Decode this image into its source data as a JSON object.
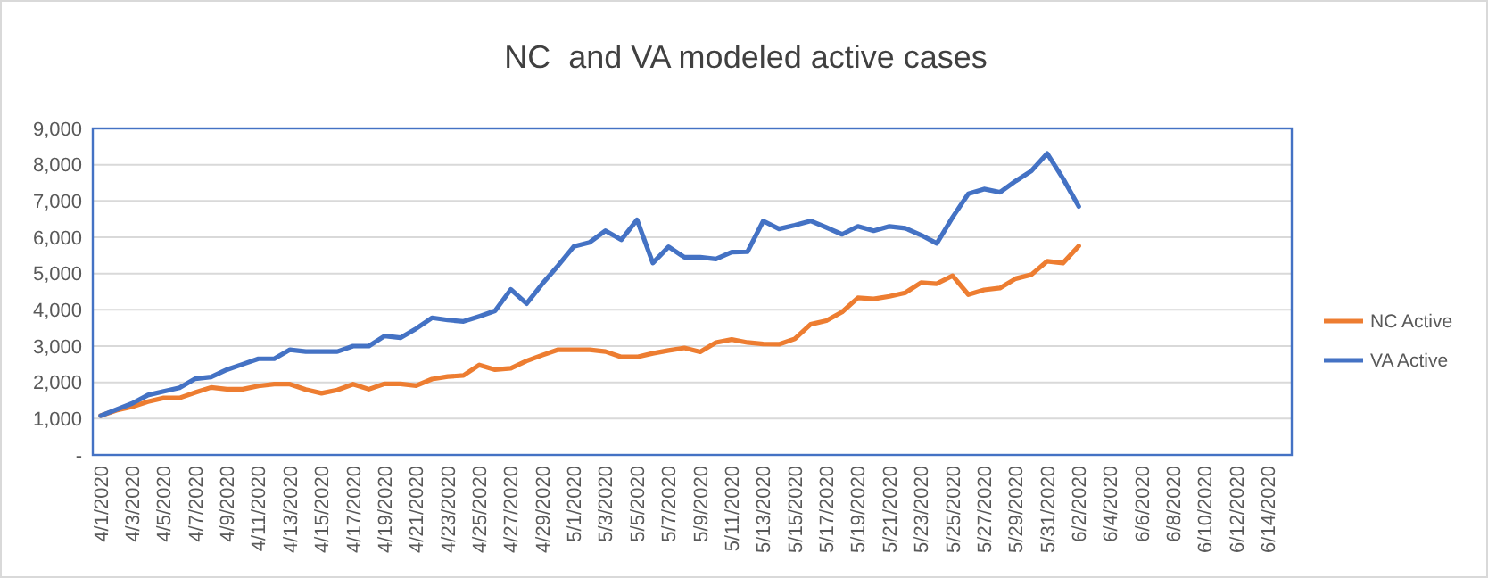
{
  "chart_data": {
    "type": "line",
    "title": "NC  and VA modeled active cases",
    "categories": [
      "4/1/2020",
      null,
      "4/3/2020",
      null,
      "4/5/2020",
      null,
      "4/7/2020",
      null,
      "4/9/2020",
      null,
      "4/11/2020",
      null,
      "4/13/2020",
      null,
      "4/15/2020",
      null,
      "4/17/2020",
      null,
      "4/19/2020",
      null,
      "4/21/2020",
      null,
      "4/23/2020",
      null,
      "4/25/2020",
      null,
      "4/27/2020",
      null,
      "4/29/2020",
      null,
      "5/1/2020",
      null,
      "5/3/2020",
      null,
      "5/5/2020",
      null,
      "5/7/2020",
      null,
      "5/9/2020",
      null,
      "5/11/2020",
      null,
      "5/13/2020",
      null,
      "5/15/2020",
      null,
      "5/17/2020",
      null,
      "5/19/2020",
      null,
      "5/21/2020",
      null,
      "5/23/2020",
      null,
      "5/25/2020",
      null,
      "5/27/2020",
      null,
      "5/29/2020",
      null,
      "5/31/2020",
      null,
      "6/2/2020",
      null,
      "6/4/2020",
      null,
      "6/6/2020",
      null,
      "6/8/2020",
      null,
      "6/10/2020",
      null,
      "6/12/2020",
      null,
      "6/14/2020",
      null
    ],
    "series": [
      {
        "name": "NC Active",
        "color": "#ed7d31",
        "values": [
          1080,
          1230,
          1330,
          1470,
          1570,
          1570,
          1720,
          1860,
          1810,
          1810,
          1900,
          1950,
          1950,
          1800,
          1700,
          1790,
          1950,
          1810,
          1960,
          1960,
          1910,
          2090,
          2160,
          2190,
          2480,
          2350,
          2390,
          2590,
          2750,
          2900,
          2900,
          2900,
          2850,
          2700,
          2700,
          2800,
          2880,
          2950,
          2840,
          3100,
          3180,
          3100,
          3060,
          3050,
          3200,
          3600,
          3700,
          3940,
          4330,
          4300,
          4370,
          4470,
          4750,
          4720,
          4940,
          4420,
          4550,
          4600,
          4860,
          4970,
          5340,
          5290,
          5760,
          null,
          null,
          null,
          null,
          null,
          null,
          null,
          null,
          null,
          null,
          null,
          null,
          null
        ]
      },
      {
        "name": "VA Active",
        "color": "#4472c4",
        "values": [
          1080,
          1250,
          1420,
          1650,
          1750,
          1850,
          2100,
          2150,
          2350,
          2500,
          2650,
          2650,
          2900,
          2850,
          2850,
          2850,
          3000,
          3000,
          3280,
          3230,
          3480,
          3780,
          3720,
          3680,
          3820,
          3970,
          4560,
          4170,
          4720,
          5220,
          5750,
          5860,
          6180,
          5930,
          6480,
          5290,
          5740,
          5450,
          5450,
          5400,
          5590,
          5600,
          6450,
          6230,
          6330,
          6450,
          6270,
          6080,
          6300,
          6180,
          6300,
          6250,
          6060,
          5830,
          6550,
          7200,
          7330,
          7240,
          7550,
          7830,
          8310,
          7620,
          6850,
          null,
          null,
          null,
          null,
          null,
          null,
          null,
          null,
          null,
          null,
          null,
          null,
          null
        ]
      }
    ],
    "ylim": [
      0,
      9000
    ],
    "yticks": [
      {
        "value": 0,
        "label": "-"
      },
      {
        "value": 1000,
        "label": "1,000"
      },
      {
        "value": 2000,
        "label": "2,000"
      },
      {
        "value": 3000,
        "label": "3,000"
      },
      {
        "value": 4000,
        "label": "4,000"
      },
      {
        "value": 5000,
        "label": "5,000"
      },
      {
        "value": 6000,
        "label": "6,000"
      },
      {
        "value": 7000,
        "label": "7,000"
      },
      {
        "value": 8000,
        "label": "8,000"
      },
      {
        "value": 9000,
        "label": "9,000"
      }
    ],
    "grid": "y",
    "legend": "right",
    "marker": "none",
    "line_style": "solid"
  }
}
